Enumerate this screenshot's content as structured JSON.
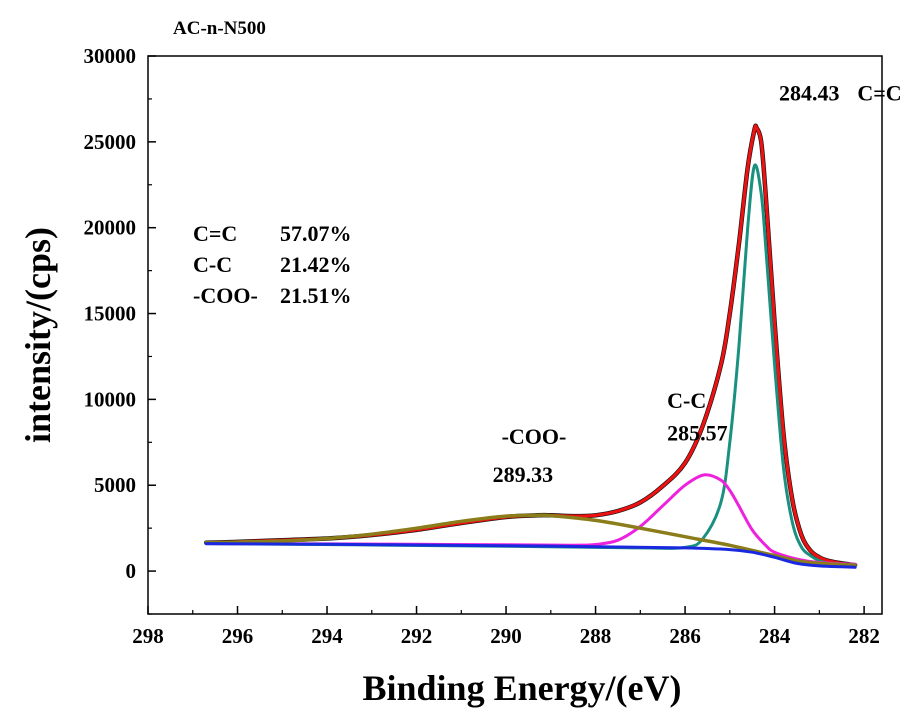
{
  "chart_data": {
    "type": "line",
    "title": "AC-n-N500",
    "xlabel": "Binding Energy/(eV)",
    "ylabel": "intensity/(cps)",
    "xlim": [
      298,
      281.6
    ],
    "ylim": [
      -2500,
      30000
    ],
    "x_reversed": true,
    "x_ticks": [
      298,
      296,
      294,
      292,
      290,
      288,
      286,
      284,
      282
    ],
    "y_ticks": [
      0,
      5000,
      10000,
      15000,
      20000,
      25000,
      30000
    ],
    "grid": false,
    "legend": "none",
    "series": [
      {
        "key": "raw",
        "color": "#111111",
        "x": [
          296.7,
          296,
          295,
          294,
          293,
          292,
          291,
          290,
          289.3,
          289,
          288.5,
          288,
          287.5,
          287,
          286.5,
          286,
          285.6,
          285.2,
          285,
          284.8,
          284.6,
          284.45,
          284.4,
          284.3,
          284.2,
          284,
          283.8,
          283.6,
          283.4,
          283.2,
          283,
          282.8,
          282.5,
          282.2
        ],
        "y": [
          1650,
          1700,
          1800,
          1900,
          2100,
          2400,
          2800,
          3150,
          3250,
          3250,
          3200,
          3250,
          3500,
          4000,
          4950,
          6300,
          8500,
          12000,
          15000,
          19000,
          23500,
          25700,
          25800,
          25000,
          22000,
          14500,
          8000,
          4100,
          2100,
          1200,
          800,
          600,
          450,
          350
        ]
      },
      {
        "key": "envelope",
        "color": "#ee1111",
        "x": [
          296.7,
          296,
          295,
          294,
          293,
          292,
          291,
          290,
          289.3,
          289,
          288.5,
          288,
          287.5,
          287,
          286.5,
          286,
          285.6,
          285.2,
          285,
          284.8,
          284.6,
          284.45,
          284.4,
          284.3,
          284.2,
          284,
          283.8,
          283.6,
          283.4,
          283.2,
          283,
          282.8,
          282.5,
          282.2
        ],
        "y": [
          1650,
          1700,
          1800,
          1900,
          2100,
          2400,
          2800,
          3150,
          3250,
          3250,
          3200,
          3250,
          3500,
          4000,
          4950,
          6300,
          8500,
          12000,
          15000,
          19000,
          23500,
          25700,
          25800,
          25000,
          22000,
          14500,
          8000,
          4100,
          2100,
          1200,
          800,
          600,
          450,
          350
        ]
      },
      {
        "key": "cc_peak",
        "color": "#1a9080",
        "x": [
          296.7,
          290,
          287,
          286,
          285.6,
          285.2,
          285,
          284.8,
          284.6,
          284.45,
          284.3,
          284.2,
          284,
          283.8,
          283.6,
          283.4,
          283.2,
          283,
          282.8,
          282.5,
          282.2
        ],
        "y": [
          1600,
          1450,
          1350,
          1380,
          1900,
          4000,
          7500,
          13000,
          20000,
          23600,
          22000,
          19000,
          12000,
          6000,
          2800,
          1400,
          900,
          600,
          450,
          350,
          300
        ]
      },
      {
        "key": "c_c_peak",
        "color": "#ee22dd",
        "x": [
          296.7,
          294,
          292,
          290,
          288.5,
          288,
          287.5,
          287,
          286.5,
          286,
          285.57,
          285.2,
          285,
          284.8,
          284.5,
          284.2,
          284,
          283.5,
          283,
          282.2
        ],
        "y": [
          1600,
          1580,
          1560,
          1530,
          1510,
          1550,
          1800,
          2600,
          3800,
          5000,
          5600,
          5300,
          4700,
          3800,
          2400,
          1500,
          1100,
          700,
          500,
          400
        ]
      },
      {
        "key": "coo_peak",
        "color": "#8a7d1a",
        "x": [
          296.7,
          295,
          294,
          293,
          292,
          291,
          290,
          289.33,
          289,
          288,
          287,
          286,
          285,
          284,
          283.5,
          283,
          282.2
        ],
        "y": [
          1650,
          1750,
          1900,
          2150,
          2500,
          2900,
          3200,
          3250,
          3230,
          2950,
          2500,
          2000,
          1500,
          900,
          600,
          450,
          350
        ]
      },
      {
        "key": "baseline",
        "color": "#1a28e0",
        "x": [
          296.7,
          294,
          292,
          290,
          288,
          286,
          285,
          284.5,
          284,
          283.5,
          283,
          282.5,
          282.2
        ],
        "y": [
          1600,
          1560,
          1520,
          1480,
          1420,
          1350,
          1250,
          1100,
          800,
          450,
          300,
          250,
          220
        ]
      }
    ],
    "annotations": [
      {
        "text": "284.43",
        "x": 283.9,
        "y": 27400
      },
      {
        "text": "C=C",
        "x": 282.15,
        "y": 27400
      },
      {
        "text": "C-C",
        "x": 286.4,
        "y": 9500
      },
      {
        "text": "285.57",
        "x": 286.4,
        "y": 7600
      },
      {
        "text": "-COO-",
        "x": 290.1,
        "y": 7400
      },
      {
        "text": "289.33",
        "x": 290.3,
        "y": 5200
      }
    ],
    "composition": [
      {
        "name": "C=C",
        "value": "57.07%"
      },
      {
        "name": "C-C",
        "value": "21.42%"
      },
      {
        "name": "-COO-",
        "value": "21.51%"
      }
    ]
  }
}
